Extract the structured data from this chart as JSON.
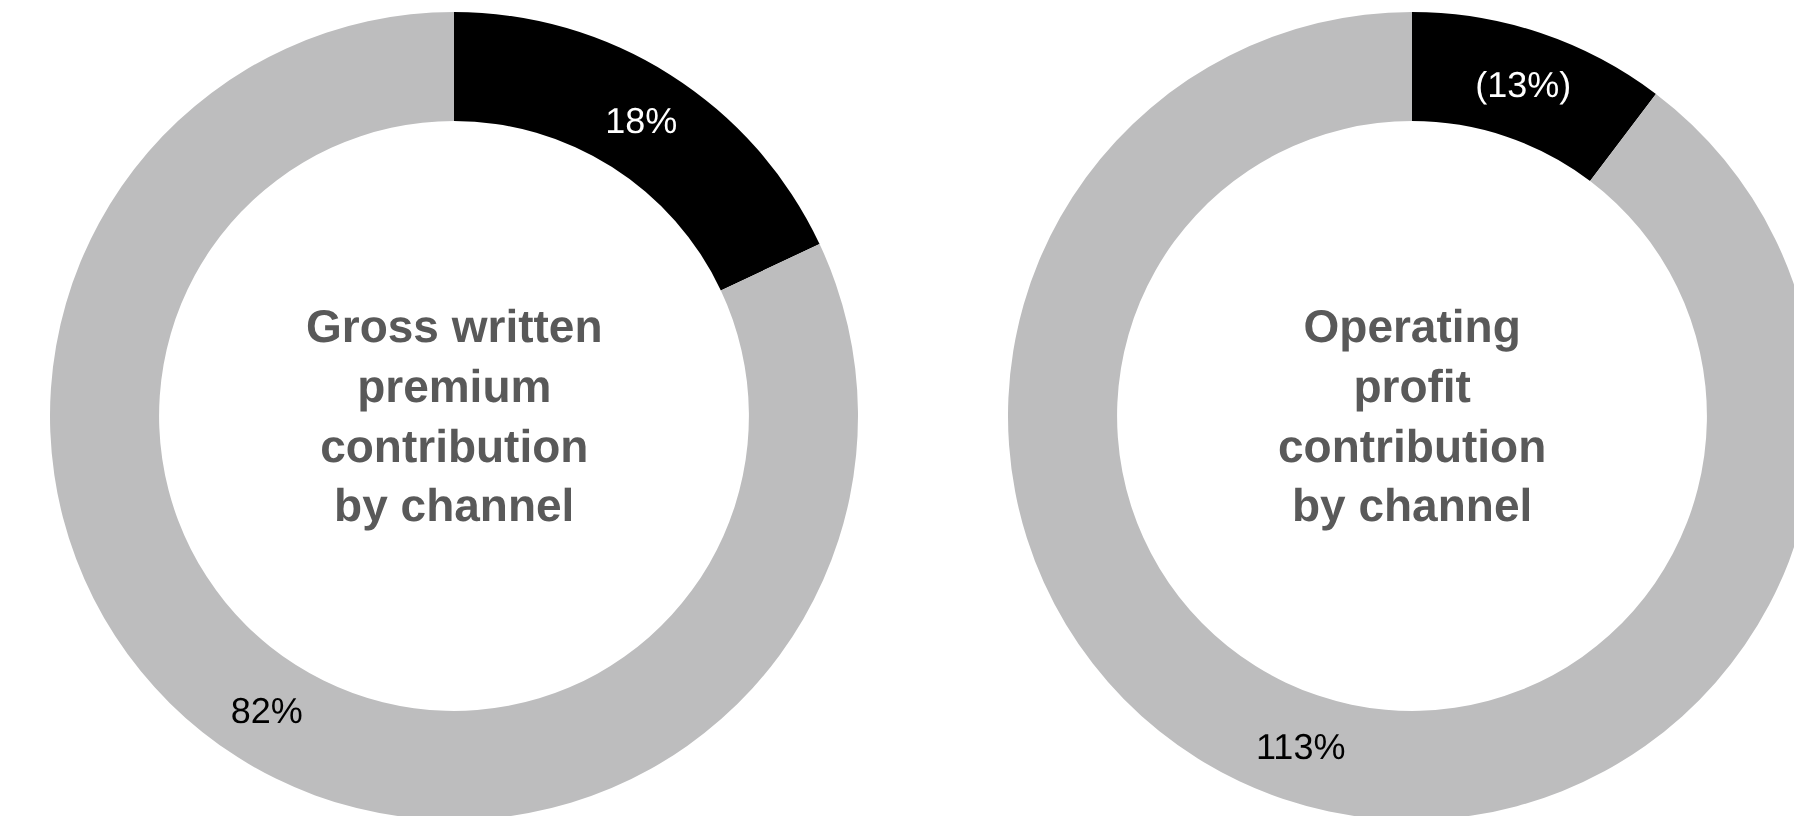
{
  "chart_data": [
    {
      "type": "donut",
      "title": "Gross written premium contribution by channel",
      "categories": [
        null,
        null
      ],
      "values": [
        18,
        82
      ],
      "value_labels": [
        "18%",
        "82%"
      ],
      "colors": [
        "#000000",
        "#bdbdbe"
      ]
    },
    {
      "type": "donut",
      "title": "Operating profit contribution by channel",
      "categories": [
        null,
        null
      ],
      "values": [
        13,
        113
      ],
      "value_labels": [
        "(13%)",
        "113%"
      ],
      "colors": [
        "#000000",
        "#bdbdbe"
      ]
    }
  ]
}
